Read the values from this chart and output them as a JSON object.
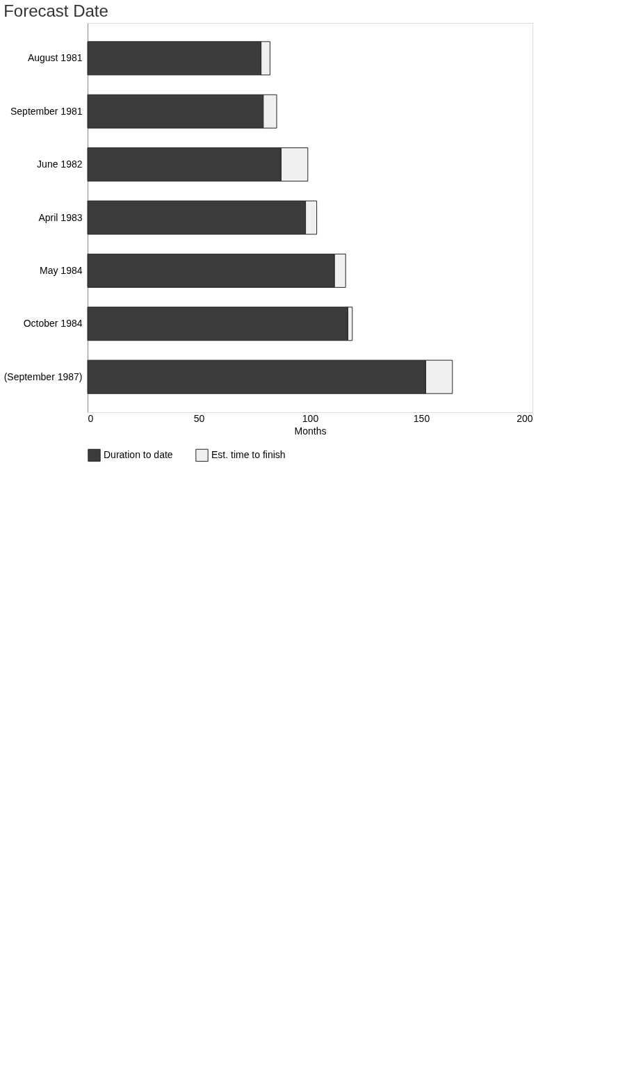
{
  "chart_data": {
    "type": "bar",
    "orientation": "horizontal",
    "stacked": true,
    "title": "Forecast Date",
    "xlabel": "Months",
    "categories": [
      "August 1981",
      "September 1981",
      "June 1982",
      "April 1983",
      "May 1984",
      "October 1984",
      "(September 1987)"
    ],
    "series": [
      {
        "name": "Duration to date",
        "color": "#3c3c3c",
        "values": [
          78,
          79,
          87,
          98,
          111,
          117,
          152
        ]
      },
      {
        "name": "Est. time to finish",
        "color": "#f0f0f0",
        "values": [
          4,
          6,
          12,
          5,
          5,
          2,
          12
        ]
      }
    ],
    "xlim": [
      0,
      200
    ],
    "xticks": [
      0,
      50,
      100,
      150,
      200
    ],
    "grid": false,
    "legend": "bottom"
  }
}
